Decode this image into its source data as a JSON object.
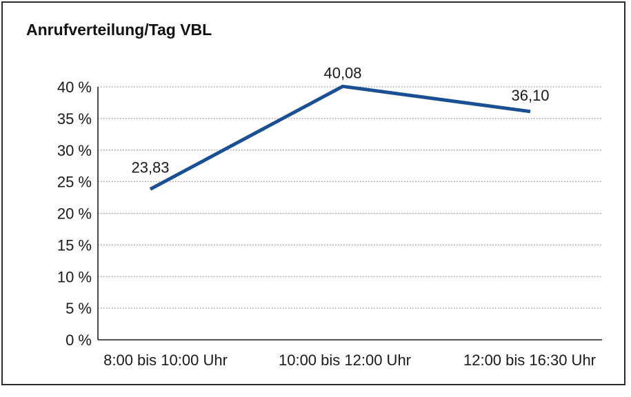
{
  "chart_data": {
    "type": "line",
    "title": "Anrufverteilung/Tag VBL",
    "categories": [
      "8:00 bis 10:00 Uhr",
      "10:00 bis 12:00 Uhr",
      "12:00 bis 16:30 Uhr"
    ],
    "values": [
      23.83,
      40.08,
      36.1
    ],
    "value_labels": [
      "23,83",
      "40,08",
      "36,10"
    ],
    "ytick_labels": [
      "0 %",
      "5 %",
      "10 %",
      "15 %",
      "20 %",
      "25 %",
      "30 %",
      "35 %",
      "40 %"
    ],
    "ylim": [
      0,
      40
    ],
    "ytick_step": 5,
    "xlabel": "",
    "ylabel": "",
    "grid": "horizontal-dotted",
    "legend": "none",
    "line_color": "#1a4f94",
    "axis_color": "#1a1a1a",
    "grid_color": "#7d7d7d",
    "text_color": "#1a1a1a"
  }
}
